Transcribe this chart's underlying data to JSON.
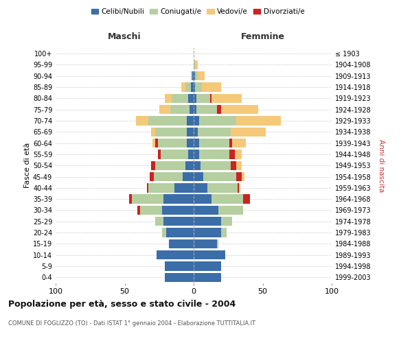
{
  "age_groups": [
    "0-4",
    "5-9",
    "10-14",
    "15-19",
    "20-24",
    "25-29",
    "30-34",
    "35-39",
    "40-44",
    "45-49",
    "50-54",
    "55-59",
    "60-64",
    "65-69",
    "70-74",
    "75-79",
    "80-84",
    "85-89",
    "90-94",
    "95-99",
    "100+"
  ],
  "birth_years": [
    "1999-2003",
    "1994-1998",
    "1989-1993",
    "1984-1988",
    "1979-1983",
    "1974-1978",
    "1969-1973",
    "1964-1968",
    "1959-1963",
    "1954-1958",
    "1949-1953",
    "1944-1948",
    "1939-1943",
    "1934-1938",
    "1929-1933",
    "1924-1928",
    "1919-1923",
    "1914-1918",
    "1909-1913",
    "1904-1908",
    "≤ 1903"
  ],
  "male": {
    "celibi": [
      21,
      21,
      27,
      18,
      20,
      22,
      23,
      22,
      14,
      8,
      6,
      4,
      5,
      5,
      5,
      3,
      4,
      2,
      1,
      0,
      0
    ],
    "coniugati": [
      0,
      0,
      0,
      0,
      3,
      6,
      16,
      23,
      19,
      21,
      22,
      20,
      21,
      23,
      28,
      14,
      12,
      4,
      1,
      0,
      0
    ],
    "vedovi": [
      0,
      0,
      0,
      0,
      0,
      0,
      0,
      0,
      0,
      0,
      0,
      0,
      2,
      3,
      9,
      8,
      5,
      3,
      0,
      0,
      0
    ],
    "divorziati": [
      0,
      0,
      0,
      0,
      0,
      0,
      2,
      2,
      1,
      3,
      3,
      2,
      2,
      0,
      0,
      0,
      0,
      0,
      0,
      0,
      0
    ]
  },
  "female": {
    "nubili": [
      20,
      20,
      23,
      17,
      20,
      20,
      18,
      13,
      10,
      7,
      5,
      4,
      4,
      3,
      4,
      2,
      2,
      1,
      1,
      0,
      0
    ],
    "coniugate": [
      0,
      0,
      0,
      1,
      4,
      8,
      18,
      23,
      22,
      24,
      22,
      22,
      22,
      24,
      27,
      15,
      10,
      5,
      2,
      1,
      0
    ],
    "vedove": [
      0,
      0,
      0,
      0,
      0,
      0,
      0,
      0,
      1,
      2,
      4,
      5,
      10,
      25,
      32,
      27,
      22,
      14,
      5,
      2,
      0
    ],
    "divorziate": [
      0,
      0,
      0,
      0,
      0,
      0,
      0,
      5,
      1,
      4,
      4,
      4,
      2,
      0,
      0,
      3,
      1,
      0,
      0,
      0,
      0
    ]
  },
  "colors": {
    "celibi": "#3b6ea8",
    "coniugati": "#b5cfa0",
    "vedovi": "#f5c97a",
    "divorziati": "#cc2222"
  },
  "xlim": 100,
  "title": "Popolazione per età, sesso e stato civile - 2004",
  "subtitle": "COMUNE DI FOGLIZZO (TO) - Dati ISTAT 1° gennaio 2004 - Elaborazione TUTTITALIA.IT",
  "ylabel_left": "Fasce di età",
  "ylabel_right": "Anni di nascita",
  "xlabel_left": "Maschi",
  "xlabel_right": "Femmine",
  "bg_color": "#ffffff",
  "grid_color": "#cccccc"
}
